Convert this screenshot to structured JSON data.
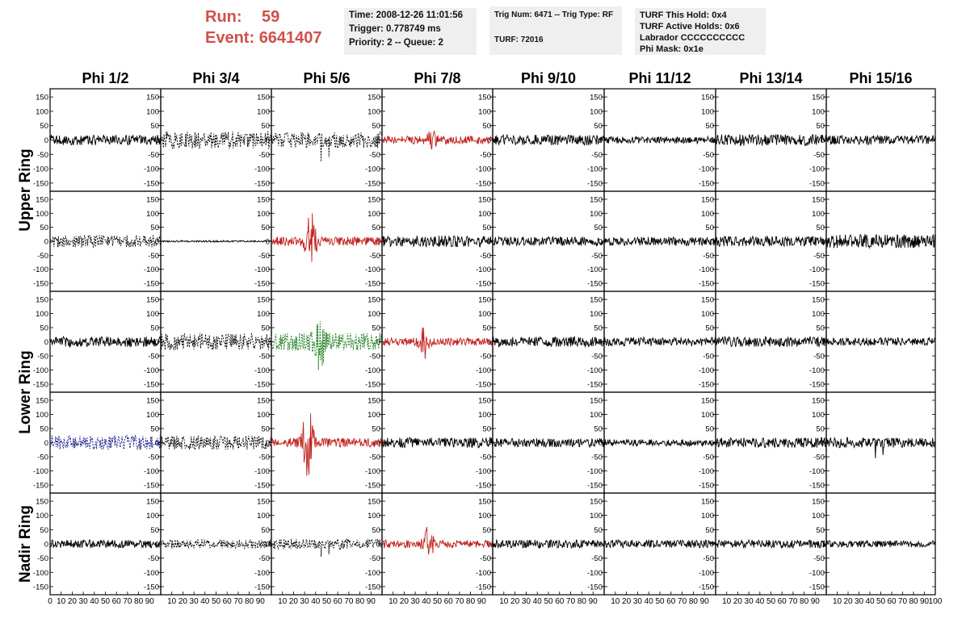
{
  "header": {
    "run_label": "Run:",
    "run_value": "59",
    "event_label": "Event:",
    "event_value": "6641407"
  },
  "info": {
    "time": "Time: 2008-12-26 11:01:56",
    "trigger": "Trigger: 0.778749 ms",
    "priority": "Priority: 2 -- Queue: 2",
    "trig_num": "Trig Num: 6471 -- Trig Type: RF",
    "turf": "TURF: 72016",
    "turf_hold": "TURF This Hold: 0x4",
    "turf_active": "TURF Active Holds: 0x6",
    "labrador": "Labrador CCCCCCCCCC",
    "phi_mask": "Phi Mask: 0x1e"
  },
  "chart_data": {
    "type": "line",
    "columns": [
      "Phi 1/2",
      "Phi 3/4",
      "Phi 5/6",
      "Phi 7/8",
      "Phi 9/10",
      "Phi 11/12",
      "Phi 13/14",
      "Phi 15/16"
    ],
    "ring_labels": [
      {
        "text": "Upper Ring",
        "rows": [
          0,
          1
        ]
      },
      {
        "text": "Lower Ring",
        "rows": [
          2,
          3
        ]
      },
      {
        "text": "Nadir Ring",
        "rows": [
          4,
          4
        ]
      }
    ],
    "xlim": [
      0,
      100
    ],
    "ylim": [
      -170,
      170
    ],
    "y_ticks": [
      150,
      100,
      50,
      0,
      -50,
      -100,
      -150
    ],
    "x_ticks": [
      0,
      10,
      20,
      30,
      40,
      50,
      60,
      70,
      80,
      90,
      100
    ],
    "colors": {
      "normal": "#000000",
      "triggered": "#c0201c",
      "green": "#1a7a1a",
      "blue": "#1a1a8a"
    },
    "panels": [
      [
        {
          "style": "solid",
          "color": "normal",
          "amp": 18
        },
        {
          "style": "dashed",
          "color": "normal",
          "amp": 30
        },
        {
          "style": "dashed",
          "color": "normal",
          "amp": 28,
          "spike": 75
        },
        {
          "style": "solid",
          "color": "triggered",
          "amp": 14,
          "burst_center": 45,
          "burst_amp": 30
        },
        {
          "style": "solid",
          "color": "normal",
          "amp": 18
        },
        {
          "style": "solid",
          "color": "normal",
          "amp": 12
        },
        {
          "style": "solid",
          "color": "normal",
          "amp": 20
        },
        {
          "style": "solid",
          "color": "normal",
          "amp": 16
        }
      ],
      [
        {
          "style": "dashed",
          "color": "normal",
          "amp": 22
        },
        {
          "style": "solid",
          "color": "normal",
          "amp": 3
        },
        {
          "style": "solid",
          "color": "triggered",
          "amp": 16,
          "burst_center": 35,
          "burst_amp": 130
        },
        {
          "style": "solid",
          "color": "normal",
          "amp": 20
        },
        {
          "style": "solid",
          "color": "normal",
          "amp": 16
        },
        {
          "style": "solid",
          "color": "normal",
          "amp": 16
        },
        {
          "style": "solid",
          "color": "normal",
          "amp": 18
        },
        {
          "style": "solid",
          "color": "normal",
          "amp": 24
        }
      ],
      [
        {
          "style": "solid",
          "color": "normal",
          "amp": 18
        },
        {
          "style": "dashed",
          "color": "normal",
          "amp": 30
        },
        {
          "style": "dashed",
          "color": "green",
          "amp": 32,
          "burst_center": 44,
          "burst_amp": 120
        },
        {
          "style": "solid",
          "color": "triggered",
          "amp": 14,
          "burst_center": 38,
          "burst_amp": 70
        },
        {
          "style": "solid",
          "color": "normal",
          "amp": 18
        },
        {
          "style": "solid",
          "color": "normal",
          "amp": 16
        },
        {
          "style": "solid",
          "color": "normal",
          "amp": 18
        },
        {
          "style": "solid",
          "color": "normal",
          "amp": 14
        }
      ],
      [
        {
          "style": "dashed",
          "color": "blue",
          "amp": 25
        },
        {
          "style": "dashed",
          "color": "normal",
          "amp": 25
        },
        {
          "style": "solid",
          "color": "triggered",
          "amp": 16,
          "burst_center": 33,
          "burst_amp": 150
        },
        {
          "style": "solid",
          "color": "normal",
          "amp": 18
        },
        {
          "style": "solid",
          "color": "normal",
          "amp": 16
        },
        {
          "style": "solid",
          "color": "normal",
          "amp": 12
        },
        {
          "style": "solid",
          "color": "normal",
          "amp": 18
        },
        {
          "style": "solid",
          "color": "normal",
          "amp": 18,
          "spike": 55
        }
      ],
      [
        {
          "style": "solid",
          "color": "normal",
          "amp": 14
        },
        {
          "style": "dashed",
          "color": "normal",
          "amp": 16
        },
        {
          "style": "dashed",
          "color": "normal",
          "amp": 18,
          "spike": 45
        },
        {
          "style": "solid",
          "color": "triggered",
          "amp": 14,
          "burst_center": 42,
          "burst_amp": 55
        },
        {
          "style": "solid",
          "color": "normal",
          "amp": 14
        },
        {
          "style": "solid",
          "color": "normal",
          "amp": 14
        },
        {
          "style": "solid",
          "color": "normal",
          "amp": 14
        },
        {
          "style": "solid",
          "color": "normal",
          "amp": 12
        }
      ]
    ]
  }
}
